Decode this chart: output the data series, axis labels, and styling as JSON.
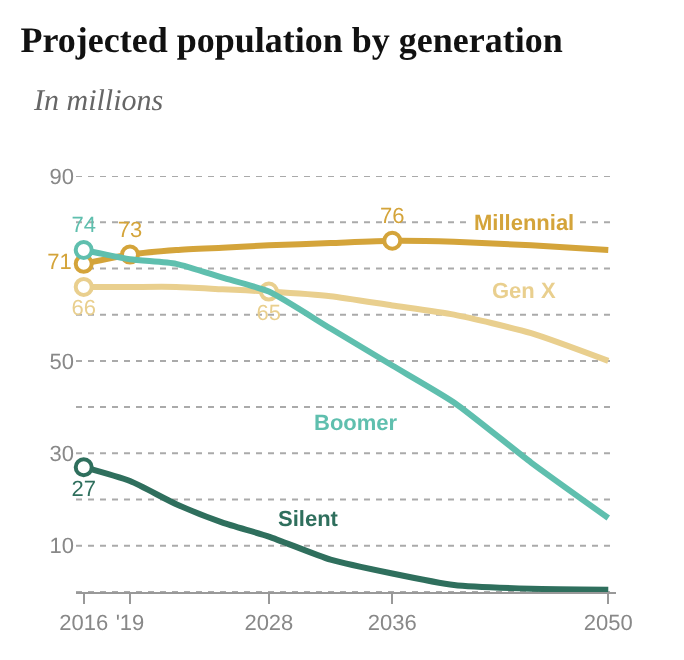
{
  "chart_data": {
    "type": "line",
    "title": "Projected population by generation",
    "subtitle": "In millions",
    "x": [
      2016,
      2019,
      2022,
      2025,
      2028,
      2032,
      2036,
      2040,
      2045,
      2050
    ],
    "series": [
      {
        "name": "Millennial",
        "color": "#d4a43a",
        "values": [
          71,
          73,
          74,
          74.5,
          75,
          75.5,
          76,
          75.8,
          75,
          74
        ],
        "value_labels": [
          "71",
          "73",
          null,
          null,
          null,
          null,
          "76",
          null,
          null,
          null
        ]
      },
      {
        "name": "Gen X",
        "color": "#e9cf8e",
        "values": [
          66,
          66,
          66,
          65.5,
          65,
          64,
          62,
          60,
          56,
          50
        ],
        "value_labels": [
          "66",
          null,
          null,
          null,
          "65",
          null,
          null,
          null,
          null,
          null
        ]
      },
      {
        "name": "Boomer",
        "color": "#5fbfae",
        "values": [
          74,
          72,
          71,
          68,
          65,
          57,
          49,
          41,
          28,
          16
        ],
        "value_labels": [
          "74",
          null,
          null,
          null,
          null,
          null,
          null,
          null,
          null,
          null
        ]
      },
      {
        "name": "Silent",
        "color": "#2f6f5d",
        "values": [
          27,
          24,
          19,
          15,
          12,
          7,
          4,
          1.5,
          0.7,
          0.5
        ],
        "value_labels": [
          "27",
          null,
          null,
          null,
          null,
          null,
          null,
          null,
          null,
          null
        ]
      }
    ],
    "xlim": [
      2015.5,
      2050.5
    ],
    "xticks": [
      2016,
      {
        "value": 2019,
        "label": "'19"
      },
      2028,
      2036,
      2050
    ],
    "ylim": [
      0,
      90
    ],
    "yticks": [
      {
        "value": 0,
        "label": null
      },
      10,
      {
        "value": 20,
        "label": null
      },
      30,
      {
        "value": 40,
        "label": null
      },
      50,
      {
        "value": 60,
        "label": null
      },
      {
        "value": 70,
        "label": null
      },
      {
        "value": 80,
        "label": null
      },
      90
    ],
    "grid": "y",
    "legend": false,
    "line_style": "solid"
  }
}
